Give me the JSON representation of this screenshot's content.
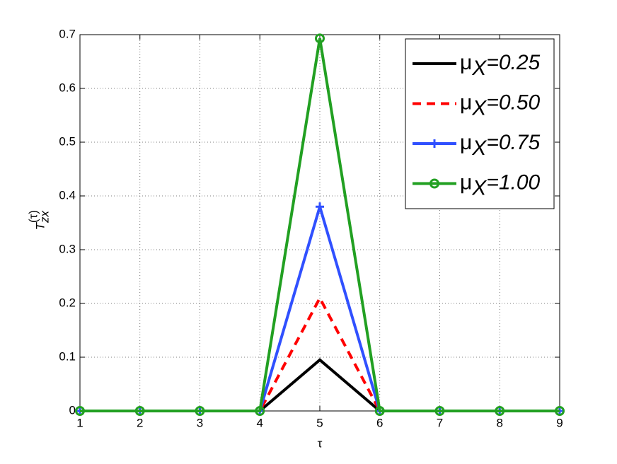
{
  "chart_data": {
    "type": "line",
    "xlabel": "τ",
    "ylabel": {
      "base": "T",
      "sub": "zx",
      "sup": "(τ)"
    },
    "x": [
      1,
      2,
      3,
      4,
      5,
      6,
      7,
      8,
      9
    ],
    "series": [
      {
        "name": "μX=0.25",
        "color": "#000000",
        "style": "solid",
        "marker": "none",
        "values": [
          0,
          0,
          0,
          0,
          0.095,
          0,
          0,
          0,
          0
        ]
      },
      {
        "name": "μX=0.50",
        "color": "#ff0000",
        "style": "dashed",
        "marker": "none",
        "values": [
          0,
          0,
          0,
          0,
          0.21,
          0,
          0,
          0,
          0
        ]
      },
      {
        "name": "μX=0.75",
        "color": "#3050ff",
        "style": "solid",
        "marker": "plus",
        "values": [
          0,
          0,
          0,
          0,
          0.38,
          0,
          0,
          0,
          0
        ]
      },
      {
        "name": "μX=1.00",
        "color": "#22a022",
        "style": "solid",
        "marker": "circle",
        "values": [
          0,
          0,
          0,
          0,
          0.693,
          0,
          0,
          0,
          0
        ]
      }
    ],
    "xlim": [
      1,
      9
    ],
    "xticks": [
      1,
      2,
      3,
      4,
      5,
      6,
      7,
      8,
      9
    ],
    "ylim": [
      0,
      0.7
    ],
    "yticks": [
      0,
      0.1,
      0.2,
      0.3,
      0.4,
      0.5,
      0.6,
      0.7
    ],
    "grid": true,
    "legend": "upper right"
  }
}
